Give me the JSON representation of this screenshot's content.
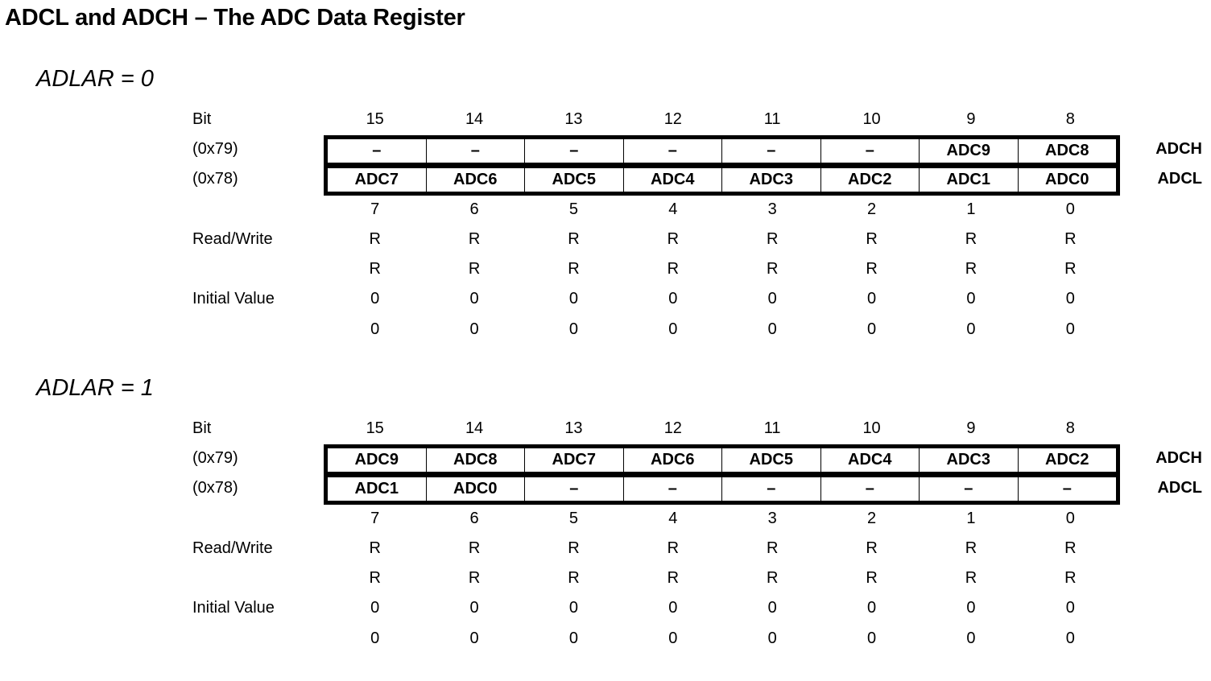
{
  "page_title": "ADCL and ADCH – The ADC Data Register",
  "labels": {
    "bit": "Bit",
    "addr_high": "(0x79)",
    "addr_low": "(0x78)",
    "read_write": "Read/Write",
    "initial_value": "Initial Value",
    "reg_high": "ADCH",
    "reg_low": "ADCL"
  },
  "high_bit_numbers": [
    "15",
    "14",
    "13",
    "12",
    "11",
    "10",
    "9",
    "8"
  ],
  "low_bit_numbers": [
    "7",
    "6",
    "5",
    "4",
    "3",
    "2",
    "1",
    "0"
  ],
  "sections": [
    {
      "title": "ADLAR = 0",
      "high_cells": [
        "–",
        "–",
        "–",
        "–",
        "–",
        "–",
        "ADC9",
        "ADC8"
      ],
      "low_cells": [
        "ADC7",
        "ADC6",
        "ADC5",
        "ADC4",
        "ADC3",
        "ADC2",
        "ADC1",
        "ADC0"
      ],
      "rw_high": [
        "R",
        "R",
        "R",
        "R",
        "R",
        "R",
        "R",
        "R"
      ],
      "rw_low": [
        "R",
        "R",
        "R",
        "R",
        "R",
        "R",
        "R",
        "R"
      ],
      "init_high": [
        "0",
        "0",
        "0",
        "0",
        "0",
        "0",
        "0",
        "0"
      ],
      "init_low": [
        "0",
        "0",
        "0",
        "0",
        "0",
        "0",
        "0",
        "0"
      ]
    },
    {
      "title": "ADLAR = 1",
      "high_cells": [
        "ADC9",
        "ADC8",
        "ADC7",
        "ADC6",
        "ADC5",
        "ADC4",
        "ADC3",
        "ADC2"
      ],
      "low_cells": [
        "ADC1",
        "ADC0",
        "–",
        "–",
        "–",
        "–",
        "–",
        "–"
      ],
      "rw_high": [
        "R",
        "R",
        "R",
        "R",
        "R",
        "R",
        "R",
        "R"
      ],
      "rw_low": [
        "R",
        "R",
        "R",
        "R",
        "R",
        "R",
        "R",
        "R"
      ],
      "init_high": [
        "0",
        "0",
        "0",
        "0",
        "0",
        "0",
        "0",
        "0"
      ],
      "init_low": [
        "0",
        "0",
        "0",
        "0",
        "0",
        "0",
        "0",
        "0"
      ]
    }
  ]
}
